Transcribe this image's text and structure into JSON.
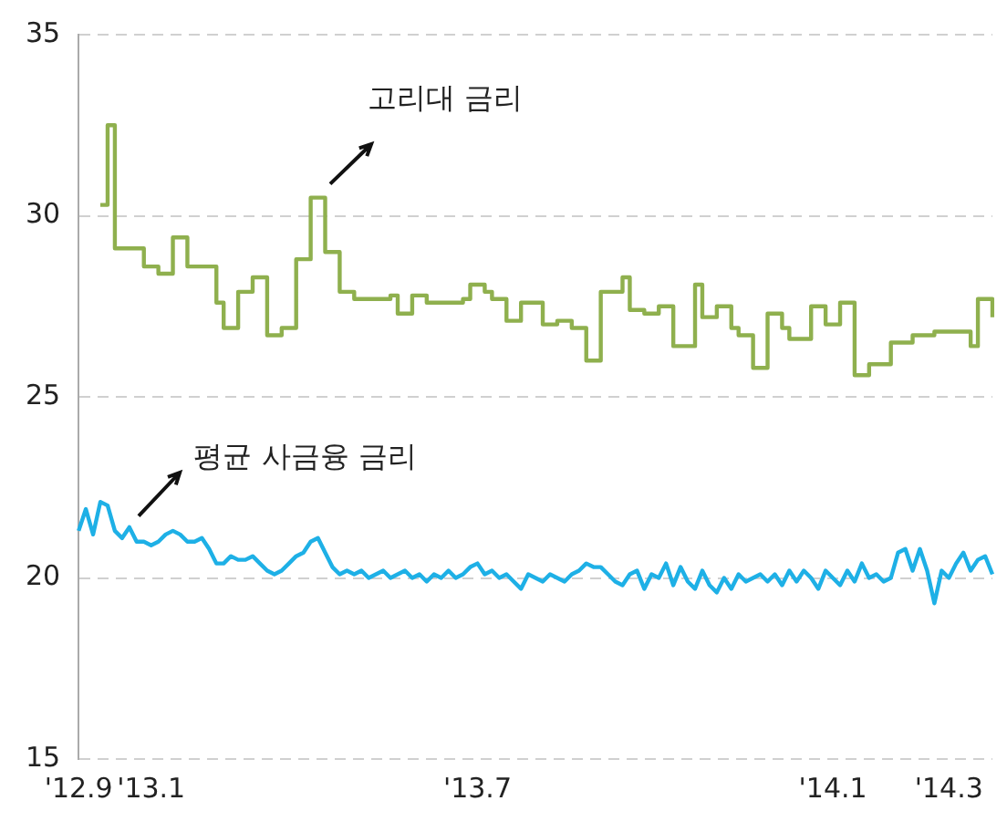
{
  "chart_data": {
    "type": "line",
    "categories": [
      "'12.9",
      null,
      null,
      null,
      null,
      null,
      null,
      null,
      null,
      null,
      "'13.1",
      null,
      null,
      null,
      null,
      null,
      null,
      null,
      null,
      null,
      null,
      null,
      null,
      null,
      null,
      null,
      null,
      null,
      null,
      null,
      null,
      null,
      null,
      null,
      null,
      null,
      null,
      null,
      null,
      null,
      null,
      null,
      null,
      null,
      null,
      null,
      null,
      null,
      null,
      null,
      null,
      null,
      null,
      null,
      null,
      "'13.7",
      null,
      null,
      null,
      null,
      null,
      null,
      null,
      null,
      null,
      null,
      null,
      null,
      null,
      null,
      null,
      null,
      null,
      null,
      null,
      null,
      null,
      null,
      null,
      null,
      null,
      null,
      null,
      null,
      null,
      null,
      null,
      null,
      null,
      null,
      null,
      null,
      null,
      null,
      null,
      null,
      null,
      null,
      null,
      null,
      null,
      null,
      null,
      null,
      "'14.1",
      null,
      null,
      null,
      null,
      null,
      null,
      null,
      null,
      null,
      null,
      null,
      null,
      null,
      null,
      null,
      "'14.3",
      null,
      null,
      null,
      null,
      null,
      null
    ],
    "series": [
      {
        "type": "step",
        "color": "#8fb04e",
        "values": [
          null,
          null,
          null,
          30.3,
          32.5,
          29.1,
          29.1,
          29.1,
          29.1,
          28.6,
          28.6,
          28.4,
          28.4,
          29.4,
          29.4,
          28.6,
          28.6,
          28.6,
          28.6,
          27.6,
          26.9,
          26.9,
          27.9,
          27.9,
          28.3,
          28.3,
          26.7,
          26.7,
          26.9,
          26.9,
          28.8,
          28.8,
          30.5,
          30.5,
          29.0,
          29.0,
          27.9,
          27.9,
          27.7,
          27.7,
          27.7,
          27.7,
          27.7,
          27.8,
          27.3,
          27.3,
          27.8,
          27.8,
          27.6,
          27.6,
          27.6,
          27.6,
          27.6,
          27.7,
          28.1,
          28.1,
          27.9,
          27.7,
          27.7,
          27.1,
          27.1,
          27.6,
          27.6,
          27.6,
          27.0,
          27.0,
          27.1,
          27.1,
          26.9,
          26.9,
          26.0,
          26.0,
          27.9,
          27.9,
          27.9,
          28.3,
          27.4,
          27.4,
          27.3,
          27.3,
          27.5,
          27.5,
          26.4,
          26.4,
          26.4,
          28.1,
          27.2,
          27.2,
          27.5,
          27.5,
          26.9,
          26.7,
          26.7,
          25.8,
          25.8,
          27.3,
          27.3,
          26.9,
          26.6,
          26.6,
          26.6,
          27.5,
          27.5,
          27.0,
          27.0,
          27.6,
          27.6,
          25.6,
          25.6,
          25.9,
          25.9,
          25.9,
          26.5,
          26.5,
          26.5,
          26.7,
          26.7,
          26.7,
          26.8,
          26.8,
          26.8,
          26.8,
          26.8,
          26.4,
          27.7,
          27.7,
          27.2
        ]
      },
      {
        "type": "line",
        "color": "#1eb0e6",
        "values": [
          21.3,
          21.9,
          21.2,
          22.1,
          22.0,
          21.3,
          21.1,
          21.4,
          21.0,
          21.0,
          20.9,
          21.0,
          21.2,
          21.3,
          21.2,
          21.0,
          21.0,
          21.1,
          20.8,
          20.4,
          20.4,
          20.6,
          20.5,
          20.5,
          20.6,
          20.4,
          20.2,
          20.1,
          20.2,
          20.4,
          20.6,
          20.7,
          21.0,
          21.1,
          20.7,
          20.3,
          20.1,
          20.2,
          20.1,
          20.2,
          20.0,
          20.1,
          20.2,
          20.0,
          20.1,
          20.2,
          20.0,
          20.1,
          19.9,
          20.1,
          20.0,
          20.2,
          20.0,
          20.1,
          20.3,
          20.4,
          20.1,
          20.2,
          20.0,
          20.1,
          19.9,
          19.7,
          20.1,
          20.0,
          19.9,
          20.1,
          20.0,
          19.9,
          20.1,
          20.2,
          20.4,
          20.3,
          20.3,
          20.1,
          19.9,
          19.8,
          20.1,
          20.2,
          19.7,
          20.1,
          20.0,
          20.4,
          19.8,
          20.3,
          19.9,
          19.7,
          20.2,
          19.8,
          19.6,
          20.0,
          19.7,
          20.1,
          19.9,
          20.0,
          20.1,
          19.9,
          20.1,
          19.8,
          20.2,
          19.9,
          20.2,
          20.0,
          19.7,
          20.2,
          20.0,
          19.8,
          20.2,
          19.9,
          20.4,
          20.0,
          20.1,
          19.9,
          20.0,
          20.7,
          20.8,
          20.2,
          20.8,
          20.2,
          19.3,
          20.2,
          20.0,
          20.4,
          20.7,
          20.2,
          20.5,
          20.6,
          20.1
        ]
      }
    ],
    "ylim": [
      15,
      35
    ],
    "yticks": [
      15,
      20,
      25,
      30,
      35
    ],
    "grid": "y",
    "legend": false,
    "marker": "none",
    "line_style": "solid",
    "annotations": [
      "고리대 금리",
      "평균 사금융 금리"
    ]
  }
}
